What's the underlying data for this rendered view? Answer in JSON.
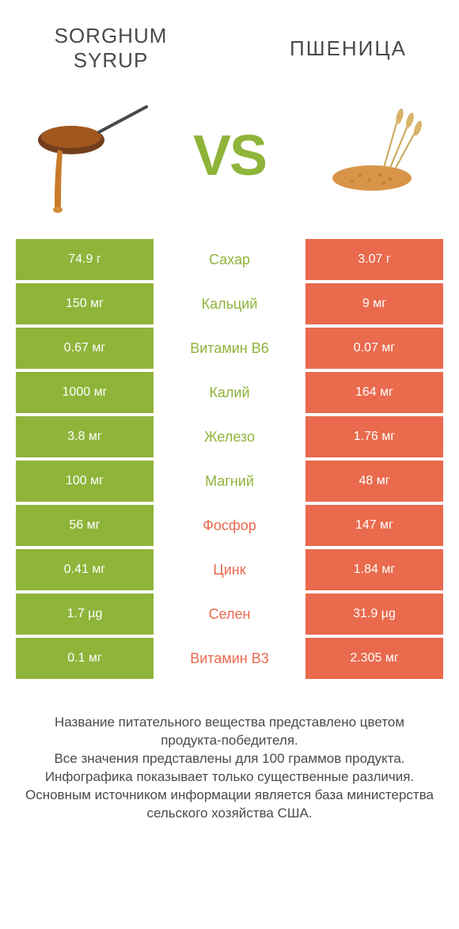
{
  "colors": {
    "green": "#8fb43a",
    "orange": "#e96a4d",
    "text": "#4a4a4a",
    "white": "#ffffff",
    "bg": "#ffffff"
  },
  "header": {
    "left_title": "SORGHUM SYRUP",
    "right_title": "ПШЕНИЦА",
    "vs": "VS"
  },
  "rows": [
    {
      "left": "74.9 г",
      "label": "Сахар",
      "right": "3.07 г",
      "winner": "left"
    },
    {
      "left": "150 мг",
      "label": "Кальций",
      "right": "9 мг",
      "winner": "left"
    },
    {
      "left": "0.67 мг",
      "label": "Витамин B6",
      "right": "0.07 мг",
      "winner": "left"
    },
    {
      "left": "1000 мг",
      "label": "Калий",
      "right": "164 мг",
      "winner": "left"
    },
    {
      "left": "3.8 мг",
      "label": "Железо",
      "right": "1.76 мг",
      "winner": "left"
    },
    {
      "left": "100 мг",
      "label": "Магний",
      "right": "48 мг",
      "winner": "left"
    },
    {
      "left": "56 мг",
      "label": "Фосфор",
      "right": "147 мг",
      "winner": "right"
    },
    {
      "left": "0.41 мг",
      "label": "Цинк",
      "right": "1.84 мг",
      "winner": "right"
    },
    {
      "left": "1.7 µg",
      "label": "Селен",
      "right": "31.9 µg",
      "winner": "right"
    },
    {
      "left": "0.1 мг",
      "label": "Витамин B3",
      "right": "2.305 мг",
      "winner": "right"
    }
  ],
  "footer": {
    "line1": "Название питательного вещества представлено цветом продукта-победителя.",
    "line2": "Все значения представлены для 100 граммов продукта.",
    "line3": "Инфографика показывает только существенные различия.",
    "line4": "Основным источником информации является база министерства сельского хозяйства США."
  }
}
